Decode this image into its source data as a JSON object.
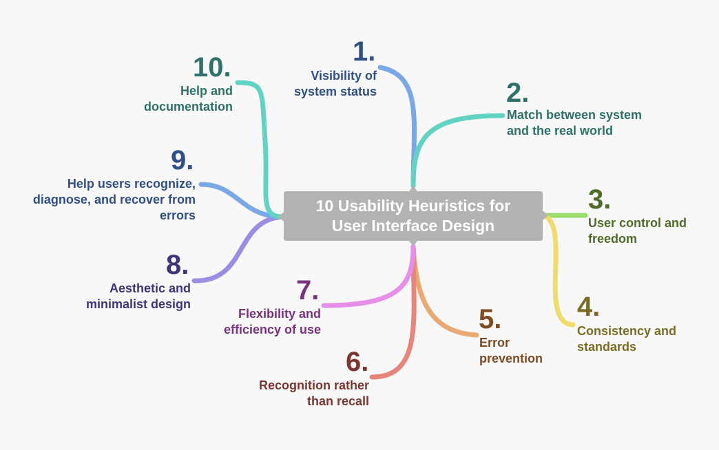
{
  "title": "10 Usability Heuristics for User Interface Design",
  "colors": {
    "center_fill": "#b3b3b3",
    "branch_1": "#7aa7e6",
    "branch_2": "#62d3c2",
    "branch_3": "#9bdb6c",
    "branch_4": "#efdc6a",
    "branch_5": "#eaa873",
    "branch_6": "#e6857c",
    "branch_7": "#e78fe8",
    "branch_8": "#9b8de3",
    "branch_9": "#7aa7e6",
    "branch_10": "#62d3c2"
  },
  "heuristics": [
    {
      "number": "1.",
      "label": "Visibility of system status"
    },
    {
      "number": "2.",
      "label": "Match between system and the real world"
    },
    {
      "number": "3.",
      "label": "User control and freedom"
    },
    {
      "number": "4.",
      "label": "Consistency and standards"
    },
    {
      "number": "5.",
      "label": "Error prevention"
    },
    {
      "number": "6.",
      "label": "Recognition rather than recall"
    },
    {
      "number": "7.",
      "label": "Flexibility and efficiency of use"
    },
    {
      "number": "8.",
      "label": "Aesthetic and minimalist design"
    },
    {
      "number": "9.",
      "label": "Help users recognize, diagnose, and recover from errors"
    },
    {
      "number": "10.",
      "label": "Help and documentation"
    }
  ]
}
